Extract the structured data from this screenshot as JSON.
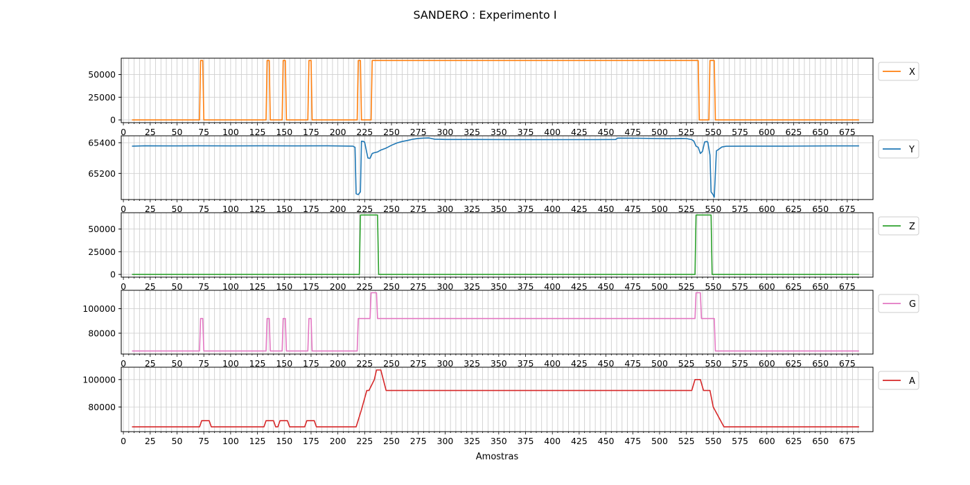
{
  "figure": {
    "title": "SANDERO : Experimento I"
  },
  "chart_data": [
    {
      "type": "line",
      "series": [
        {
          "name": "X",
          "color": "#ff7f0e",
          "x": [
            8,
            71,
            72,
            74,
            75,
            133,
            134,
            136,
            137,
            148,
            149,
            151,
            152,
            172,
            173,
            175,
            176,
            218,
            219,
            221,
            222,
            231,
            232,
            536,
            537,
            546,
            547,
            551,
            552,
            686
          ],
          "y": [
            0,
            0,
            65500,
            65500,
            0,
            0,
            65500,
            65500,
            0,
            0,
            65500,
            65500,
            0,
            0,
            65500,
            65500,
            0,
            0,
            65500,
            65500,
            0,
            0,
            65500,
            65500,
            0,
            0,
            65500,
            65500,
            0,
            0
          ]
        }
      ],
      "xlim": [
        -2,
        699
      ],
      "ylim": [
        -3000,
        68000
      ],
      "yticks": [
        0,
        25000,
        50000
      ],
      "ytick_labels": [
        "0",
        "25000",
        "50000"
      ],
      "xticks": [
        0,
        25,
        50,
        75,
        100,
        125,
        150,
        175,
        200,
        225,
        250,
        275,
        300,
        325,
        350,
        375,
        400,
        425,
        450,
        475,
        500,
        525,
        550,
        575,
        600,
        625,
        650,
        675
      ],
      "grid": true,
      "legend": "outside-right"
    },
    {
      "type": "line",
      "series": [
        {
          "name": "Y",
          "color": "#1f77b4",
          "x": [
            8,
            20,
            40,
            70,
            100,
            130,
            160,
            190,
            214,
            216,
            217,
            219,
            221,
            222,
            224,
            225,
            228,
            230,
            232,
            234,
            237,
            240,
            245,
            250,
            255,
            260,
            265,
            270,
            275,
            280,
            285,
            290,
            300,
            330,
            360,
            400,
            440,
            459,
            461,
            480,
            500,
            510,
            520,
            525,
            530,
            532,
            534,
            536,
            537,
            538,
            540,
            542,
            544,
            545,
            547,
            548,
            550,
            551,
            553,
            555,
            558,
            562,
            580,
            620,
            660,
            686
          ],
          "y": [
            65378,
            65380,
            65379,
            65380,
            65379,
            65380,
            65379,
            65380,
            65378,
            65370,
            65068,
            65062,
            65080,
            65410,
            65408,
            65403,
            65300,
            65298,
            65330,
            65335,
            65340,
            65352,
            65365,
            65383,
            65398,
            65408,
            65415,
            65423,
            65428,
            65430,
            65431,
            65423,
            65421,
            65421,
            65420,
            65420,
            65420,
            65421,
            65430,
            65429,
            65427,
            65426,
            65428,
            65427,
            65420,
            65410,
            65378,
            65370,
            65350,
            65330,
            65344,
            65405,
            65408,
            65403,
            65320,
            65080,
            65060,
            65045,
            65347,
            65356,
            65372,
            65377,
            65378,
            65378,
            65379,
            65379
          ]
        }
      ],
      "xlim": [
        -2,
        699
      ],
      "ylim": [
        65030,
        65445
      ],
      "yticks": [
        65200,
        65400
      ],
      "ytick_labels": [
        "65200",
        "65400"
      ],
      "xticks": [
        0,
        25,
        50,
        75,
        100,
        125,
        150,
        175,
        200,
        225,
        250,
        275,
        300,
        325,
        350,
        375,
        400,
        425,
        450,
        475,
        500,
        525,
        550,
        575,
        600,
        625,
        650,
        675
      ],
      "grid": true,
      "legend": "outside-right"
    },
    {
      "type": "line",
      "series": [
        {
          "name": "Z",
          "color": "#2ca02c",
          "x": [
            8,
            220,
            221,
            237,
            238,
            533,
            534,
            548,
            549,
            686
          ],
          "y": [
            0,
            0,
            65500,
            65500,
            0,
            0,
            65500,
            65500,
            0,
            0
          ]
        }
      ],
      "xlim": [
        -2,
        699
      ],
      "ylim": [
        -3000,
        68000
      ],
      "yticks": [
        0,
        25000,
        50000
      ],
      "ytick_labels": [
        "0",
        "25000",
        "50000"
      ],
      "xticks": [
        0,
        25,
        50,
        75,
        100,
        125,
        150,
        175,
        200,
        225,
        250,
        275,
        300,
        325,
        350,
        375,
        400,
        425,
        450,
        475,
        500,
        525,
        550,
        575,
        600,
        625,
        650,
        675
      ],
      "grid": true,
      "legend": "outside-right"
    },
    {
      "type": "line",
      "series": [
        {
          "name": "G",
          "color": "#e377c2",
          "x": [
            8,
            71,
            72,
            74,
            75,
            133,
            134,
            136,
            137,
            148,
            149,
            151,
            152,
            172,
            173,
            175,
            176,
            218,
            219,
            230,
            231,
            236,
            237,
            533,
            534,
            538,
            539,
            551,
            552,
            686
          ],
          "y": [
            65500,
            65500,
            92000,
            92000,
            65500,
            65500,
            92000,
            92000,
            65500,
            65500,
            92000,
            92000,
            65500,
            65500,
            92000,
            92000,
            65500,
            65500,
            92000,
            92000,
            113000,
            113000,
            92000,
            92000,
            113000,
            113000,
            92000,
            92000,
            65500,
            65500
          ]
        }
      ],
      "xlim": [
        -2,
        699
      ],
      "ylim": [
        63000,
        115000
      ],
      "yticks": [
        80000,
        100000
      ],
      "ytick_labels": [
        "80000",
        "100000"
      ],
      "xticks": [
        0,
        25,
        50,
        75,
        100,
        125,
        150,
        175,
        200,
        225,
        250,
        275,
        300,
        325,
        350,
        375,
        400,
        425,
        450,
        475,
        500,
        525,
        550,
        575,
        600,
        625,
        650,
        675
      ],
      "grid": true,
      "legend": "outside-right"
    },
    {
      "type": "line",
      "series": [
        {
          "name": "A",
          "color": "#d62728",
          "x": [
            8,
            71,
            73,
            80,
            82,
            131,
            133,
            140,
            142,
            144,
            146,
            153,
            155,
            169,
            171,
            178,
            180,
            217,
            222,
            227,
            229,
            234,
            236,
            240,
            245,
            248,
            250,
            525,
            528,
            530,
            533,
            536,
            538,
            541,
            544,
            547,
            550,
            560,
            565,
            686
          ],
          "y": [
            65500,
            65500,
            70000,
            70000,
            65500,
            65500,
            70000,
            70000,
            65500,
            65500,
            70000,
            70000,
            65500,
            65500,
            70000,
            70000,
            65500,
            65500,
            78000,
            92000,
            92000,
            100000,
            107000,
            107000,
            92000,
            92000,
            92000,
            92000,
            92000,
            92000,
            100000,
            100000,
            100000,
            92000,
            92000,
            92000,
            80000,
            65500,
            65500,
            65500
          ]
        }
      ],
      "xlim": [
        -2,
        699
      ],
      "ylim": [
        62000,
        109000
      ],
      "yticks": [
        80000,
        100000
      ],
      "ytick_labels": [
        "80000",
        "100000"
      ],
      "xticks": [
        0,
        25,
        50,
        75,
        100,
        125,
        150,
        175,
        200,
        225,
        250,
        275,
        300,
        325,
        350,
        375,
        400,
        425,
        450,
        475,
        500,
        525,
        550,
        575,
        600,
        625,
        650,
        675
      ],
      "xlabel": "Amostras",
      "grid": true,
      "legend": "outside-right"
    }
  ]
}
